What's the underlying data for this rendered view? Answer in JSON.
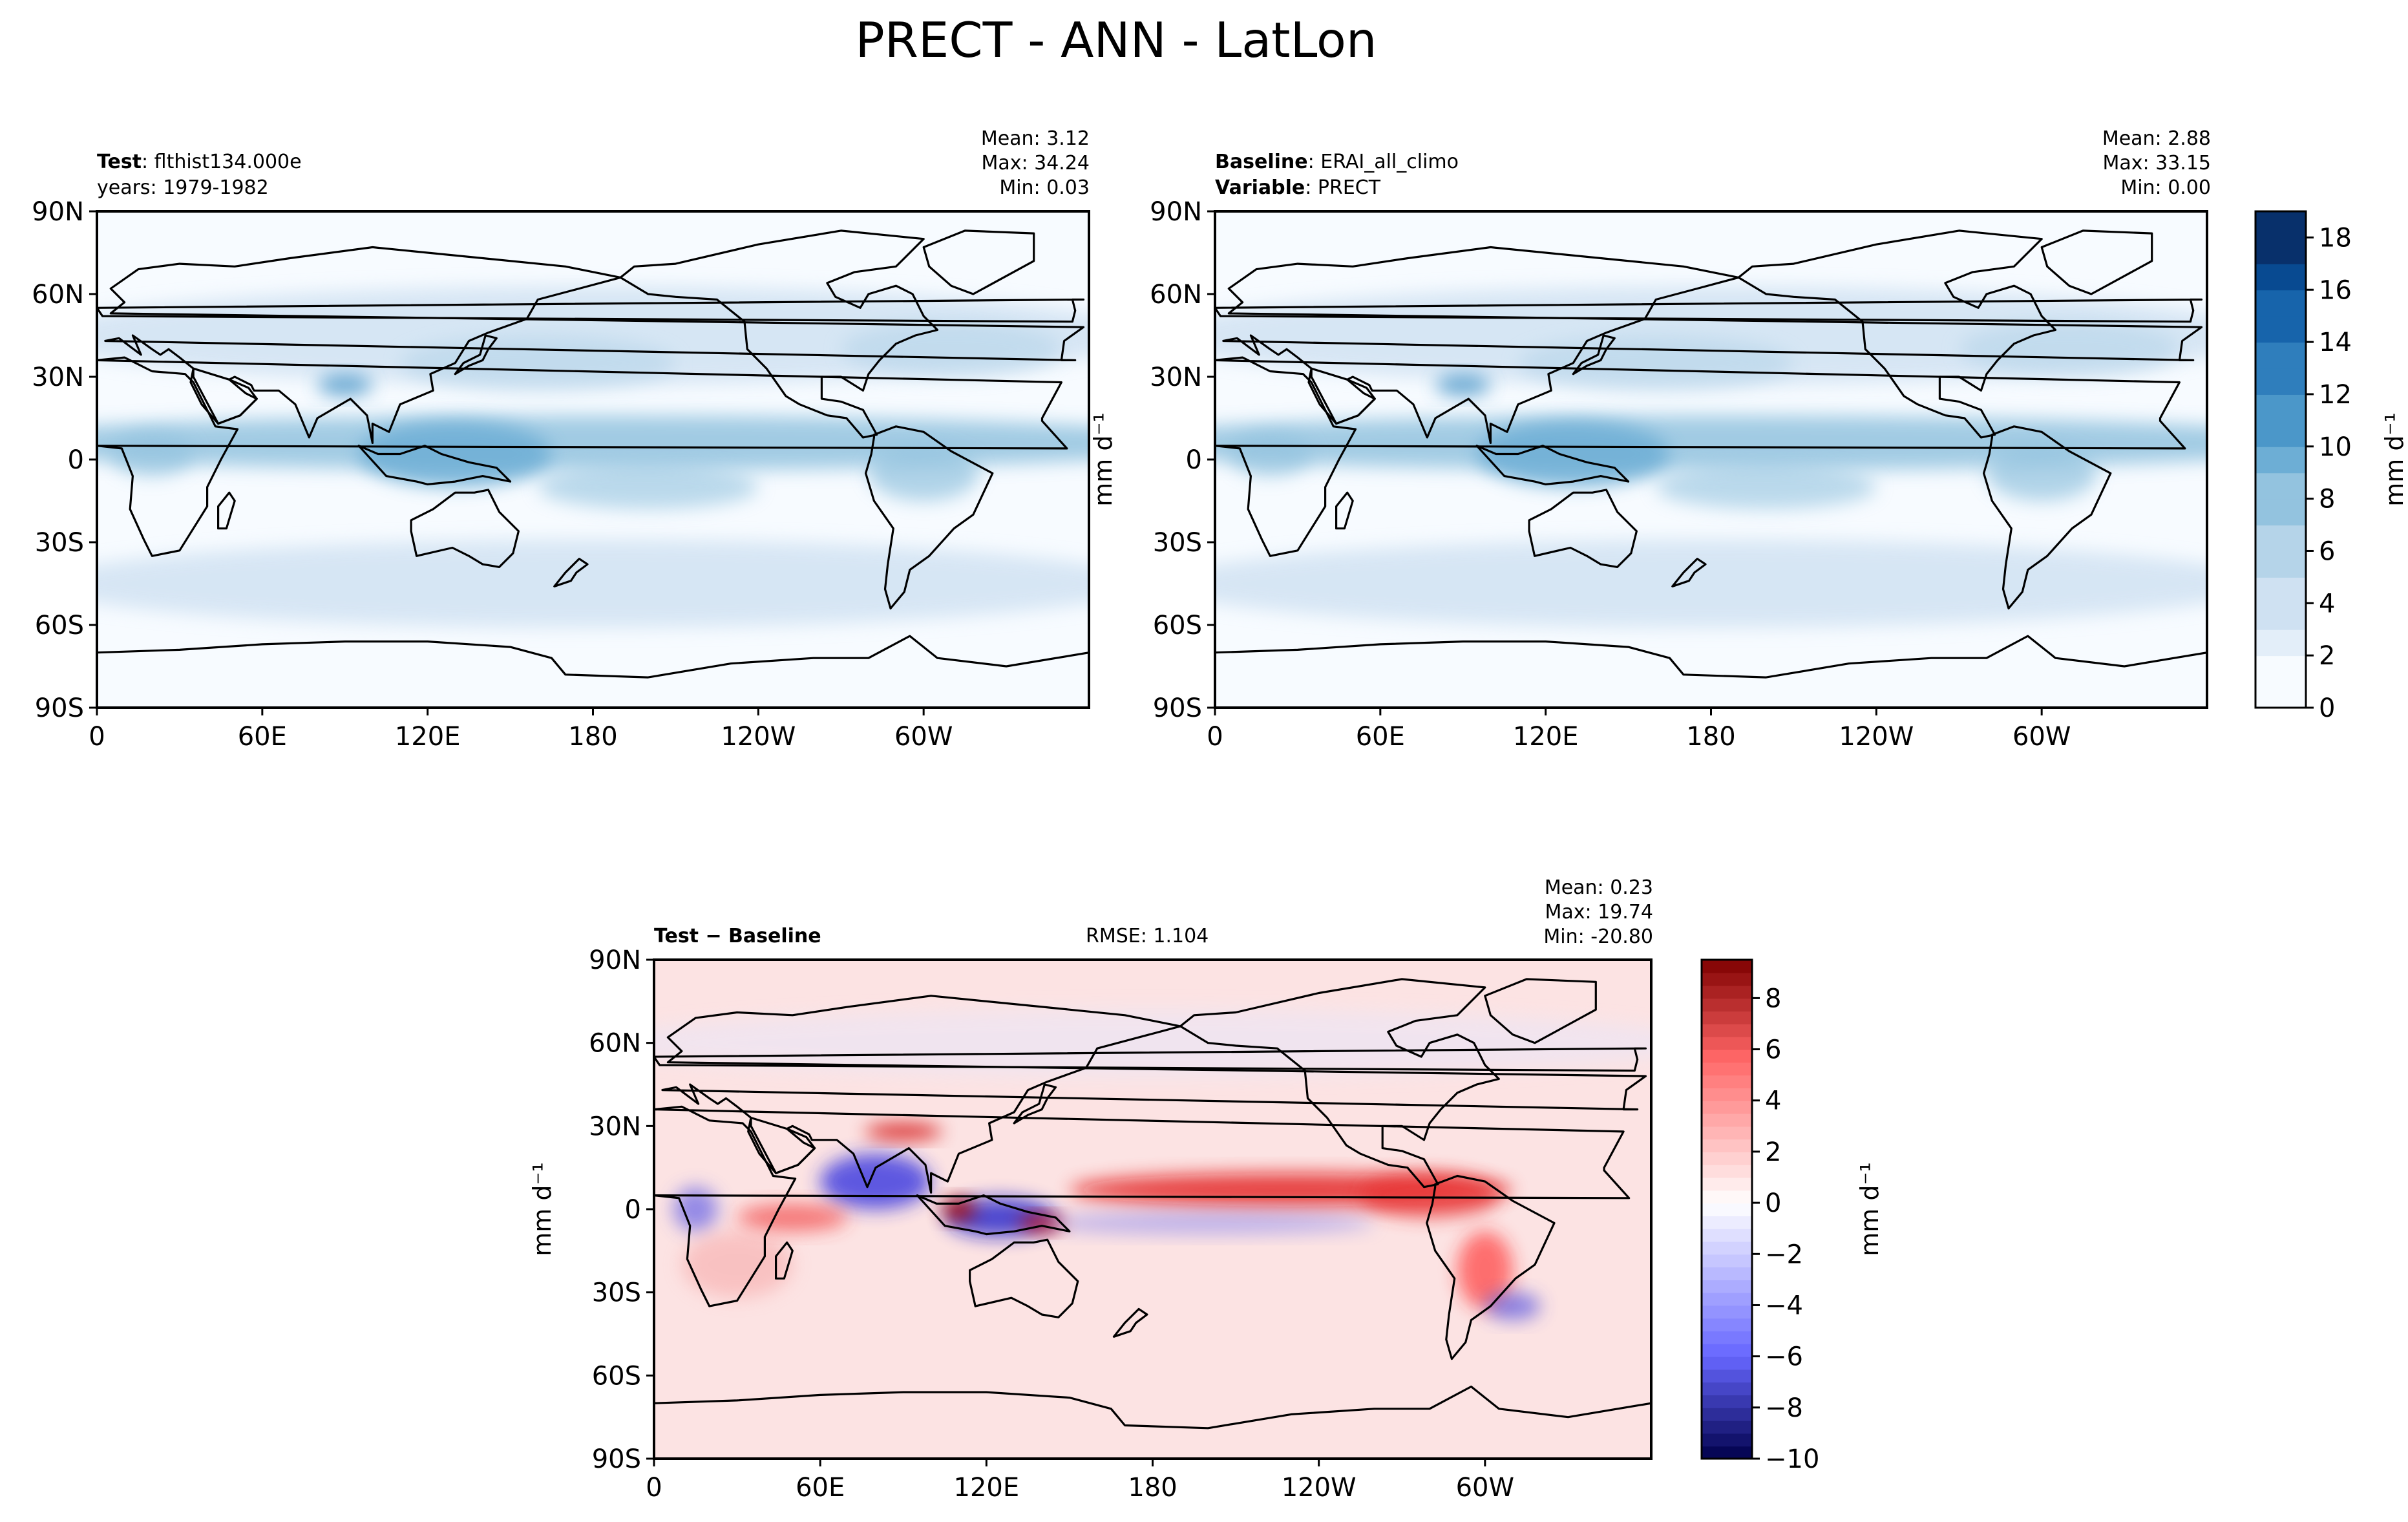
{
  "title": "PRECT - ANN - LatLon",
  "colors": {
    "blues": [
      "#f7fbff",
      "#e3eef9",
      "#cfe1f2",
      "#b5d4e9",
      "#93c3df",
      "#6daed5",
      "#4b97c9",
      "#2f7ebc",
      "#1764ab",
      "#084a91",
      "#08306b"
    ],
    "diff_neg_dark": "#00004c",
    "diff_pos_dark": "#800000",
    "coast": "#000000"
  },
  "panels": {
    "test": {
      "label_bold": "Test",
      "label_rest": ": flthist134.000e",
      "line2": "years: 1979-1982",
      "mean": "Mean:  3.12",
      "max": "Max: 34.24",
      "min": "Min:  0.03"
    },
    "baseline": {
      "label_bold": "Baseline",
      "label_rest": ": ERAI_all_climo",
      "line2_bold": "Variable",
      "line2_rest": ": PRECT",
      "mean": "Mean:  2.88",
      "max": "Max: 33.15",
      "min": "Min:  0.00"
    },
    "diff": {
      "label_bold": "Test − Baseline",
      "rmse": "RMSE: 1.104",
      "mean": "Mean:  0.23",
      "max": "Max: 19.74",
      "min": "Min: -20.80"
    }
  },
  "chart_data": [
    {
      "type": "heatmap",
      "name": "Test",
      "x": [
        "0",
        "60E",
        "120E",
        "180",
        "120W",
        "60W"
      ],
      "y": [
        "90N",
        "60N",
        "30N",
        "0",
        "30S",
        "60S",
        "90S"
      ],
      "xlim": [
        0,
        360
      ],
      "ylim": [
        -90,
        90
      ],
      "statistics": {
        "mean": 3.12,
        "max": 34.24,
        "min": 0.03
      }
    },
    {
      "type": "heatmap",
      "name": "Baseline",
      "x": [
        "0",
        "60E",
        "120E",
        "180",
        "120W",
        "60W"
      ],
      "y": [
        "90N",
        "60N",
        "30N",
        "0",
        "30S",
        "60S",
        "90S"
      ],
      "xlim": [
        0,
        360
      ],
      "ylim": [
        -90,
        90
      ],
      "ylabel": "mm d⁻¹",
      "statistics": {
        "mean": 2.88,
        "max": 33.15,
        "min": 0.0
      },
      "colorbar": {
        "ticks": [
          "0",
          "2",
          "4",
          "6",
          "8",
          "10",
          "12",
          "14",
          "16",
          "18"
        ],
        "range": [
          0,
          19
        ],
        "label": "mm d⁻¹"
      }
    },
    {
      "type": "heatmap",
      "name": "Test − Baseline",
      "x": [
        "0",
        "60E",
        "120E",
        "180",
        "120W",
        "60W"
      ],
      "y": [
        "90N",
        "60N",
        "30N",
        "0",
        "30S",
        "60S",
        "90S"
      ],
      "xlim": [
        0,
        360
      ],
      "ylim": [
        -90,
        90
      ],
      "ylabel": "mm d⁻¹",
      "statistics": {
        "mean": 0.23,
        "max": 19.74,
        "min": -20.8,
        "rmse": 1.104
      },
      "colorbar": {
        "ticks": [
          "−10",
          "−8",
          "−6",
          "−4",
          "−2",
          "0",
          "2",
          "4",
          "6",
          "8"
        ],
        "range": [
          -10,
          9.5
        ],
        "label": "mm d⁻¹"
      }
    }
  ]
}
